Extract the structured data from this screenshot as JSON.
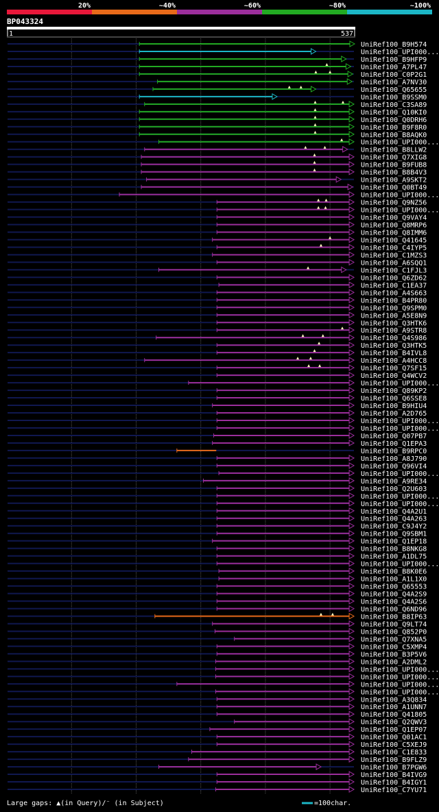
{
  "legend": {
    "identity_bins": [
      {
        "label": "20%",
        "color": "#e8183a"
      },
      {
        "label": "~40%",
        "color": "#e86a1a"
      },
      {
        "label": "~60%",
        "color": "#9b2e9b"
      },
      {
        "label": "~80%",
        "color": "#22aa22"
      },
      {
        "label": "~100%",
        "color": "#1cb6c6"
      }
    ]
  },
  "chart_data": {
    "type": "alignment-overview",
    "title": "BP043324",
    "query_range": {
      "start_label": "1",
      "end_label": "537",
      "length": 537
    },
    "colors": {
      "query_line": "#101850",
      "grid": "#555555",
      "gap": "#ffffc0",
      "red": "#e8183a",
      "orange": "#e86a1a",
      "purple": "#9b2e9b",
      "green": "#22aa22",
      "cyan": "#1cb6c6"
    },
    "footer": {
      "gaps_text": "Large gaps: ▲(in Query)/⁻ (in Subject)",
      "scale_text": "=100char."
    },
    "hits": [
      {
        "name": "UniRef100_B9H574",
        "start": 205,
        "end": 537,
        "color": "green",
        "tip": "open",
        "gaps": []
      },
      {
        "name": "UniRef100_UPI000...",
        "start": 205,
        "end": 477,
        "color": "cyan",
        "tip": "open",
        "gaps": []
      },
      {
        "name": "UniRef100_B9HFP9",
        "start": 205,
        "end": 524,
        "color": "green",
        "tip": "open",
        "gaps": []
      },
      {
        "name": "UniRef100_A7PL47",
        "start": 205,
        "end": 531,
        "color": "green",
        "tip": "open",
        "gaps": [
          495
        ]
      },
      {
        "name": "UniRef100_C0P2G1",
        "start": 205,
        "end": 534,
        "color": "green",
        "tip": "open",
        "gaps": [
          478,
          500
        ]
      },
      {
        "name": "UniRef100_A7NV30",
        "start": 233,
        "end": 533,
        "color": "green",
        "tip": "open",
        "gaps": []
      },
      {
        "name": "UniRef100_Q65655",
        "start": 226,
        "end": 477,
        "color": "green",
        "tip": "open",
        "gaps": [
          437,
          455
        ]
      },
      {
        "name": "UniRef100_B9SSM0",
        "start": 205,
        "end": 417,
        "color": "cyan",
        "tip": "open",
        "gaps": []
      },
      {
        "name": "UniRef100_C3SA89",
        "start": 213,
        "end": 536,
        "color": "green",
        "tip": "open",
        "gaps": [
          477,
          520
        ]
      },
      {
        "name": "UniRef100_Q10KI0",
        "start": 205,
        "end": 536,
        "color": "green",
        "tip": "open",
        "gaps": [
          477
        ]
      },
      {
        "name": "UniRef100_Q0DRH6",
        "start": 205,
        "end": 536,
        "color": "green",
        "tip": "open",
        "gaps": [
          477
        ]
      },
      {
        "name": "UniRef100_B9F8R0",
        "start": 205,
        "end": 536,
        "color": "green",
        "tip": "open",
        "gaps": [
          477
        ]
      },
      {
        "name": "UniRef100_B8AQK0",
        "start": 205,
        "end": 536,
        "color": "green",
        "tip": "open",
        "gaps": [
          477
        ]
      },
      {
        "name": "UniRef100_UPI000...",
        "start": 235,
        "end": 536,
        "color": "green",
        "tip": "open",
        "gaps": [
          518
        ]
      },
      {
        "name": "UniRef100_B8LLW2",
        "start": 213,
        "end": 526,
        "color": "purple",
        "tip": "open",
        "gaps": [
          462,
          492
        ]
      },
      {
        "name": "UniRef100_Q7XIG8",
        "start": 208,
        "end": 536,
        "color": "purple",
        "tip": "open",
        "gaps": [
          476
        ]
      },
      {
        "name": "UniRef100_B9FUB8",
        "start": 208,
        "end": 536,
        "color": "purple",
        "tip": "open",
        "gaps": [
          476
        ]
      },
      {
        "name": "UniRef100_B8B4V3",
        "start": 208,
        "end": 536,
        "color": "purple",
        "tip": "open",
        "gaps": [
          476
        ]
      },
      {
        "name": "UniRef100_A9SKT2",
        "start": 216,
        "end": 516,
        "color": "purple",
        "tip": "open",
        "gaps": []
      },
      {
        "name": "UniRef100_Q0BT49",
        "start": 208,
        "end": 534,
        "color": "purple",
        "tip": "open",
        "gaps": []
      },
      {
        "name": "UniRef100_UPI000...",
        "start": 174,
        "end": 536,
        "color": "purple",
        "tip": "open",
        "gaps": []
      },
      {
        "name": "UniRef100_Q9NZ56",
        "start": 325,
        "end": 536,
        "color": "purple",
        "tip": "open",
        "gaps": [
          482,
          494
        ]
      },
      {
        "name": "UniRef100_UPI000...",
        "start": 325,
        "end": 536,
        "color": "purple",
        "tip": "open",
        "gaps": [
          482,
          493
        ]
      },
      {
        "name": "UniRef100_Q9VAY4",
        "start": 325,
        "end": 536,
        "color": "purple",
        "tip": "open",
        "gaps": []
      },
      {
        "name": "UniRef100_Q8MRP6",
        "start": 325,
        "end": 536,
        "color": "purple",
        "tip": "open",
        "gaps": []
      },
      {
        "name": "UniRef100_Q8IMM6",
        "start": 325,
        "end": 536,
        "color": "purple",
        "tip": "open",
        "gaps": []
      },
      {
        "name": "UniRef100_Q41645",
        "start": 318,
        "end": 536,
        "color": "purple",
        "tip": "open",
        "gaps": [
          500
        ]
      },
      {
        "name": "UniRef100_C4IYP5",
        "start": 325,
        "end": 536,
        "color": "purple",
        "tip": "open",
        "gaps": [
          486
        ]
      },
      {
        "name": "UniRef100_C1MZS3",
        "start": 318,
        "end": 536,
        "color": "purple",
        "tip": "open",
        "gaps": []
      },
      {
        "name": "UniRef100_A6SQQ1",
        "start": 325,
        "end": 536,
        "color": "purple",
        "tip": "open",
        "gaps": []
      },
      {
        "name": "UniRef100_C1FJL3",
        "start": 235,
        "end": 524,
        "color": "purple",
        "tip": "open",
        "gaps": [
          466
        ]
      },
      {
        "name": "UniRef100_Q6ZD62",
        "start": 325,
        "end": 536,
        "color": "purple",
        "tip": "open",
        "gaps": []
      },
      {
        "name": "UniRef100_C1EA37",
        "start": 328,
        "end": 536,
        "color": "purple",
        "tip": "open",
        "gaps": []
      },
      {
        "name": "UniRef100_A4S663",
        "start": 325,
        "end": 536,
        "color": "purple",
        "tip": "open",
        "gaps": []
      },
      {
        "name": "UniRef100_B4PR80",
        "start": 325,
        "end": 536,
        "color": "purple",
        "tip": "open",
        "gaps": []
      },
      {
        "name": "UniRef100_Q9SPM0",
        "start": 325,
        "end": 536,
        "color": "purple",
        "tip": "open",
        "gaps": []
      },
      {
        "name": "UniRef100_A5E8N9",
        "start": 325,
        "end": 536,
        "color": "purple",
        "tip": "open",
        "gaps": []
      },
      {
        "name": "UniRef100_Q3HTK6",
        "start": 325,
        "end": 536,
        "color": "purple",
        "tip": "open",
        "gaps": []
      },
      {
        "name": "UniRef100_A9STR8",
        "start": 325,
        "end": 536,
        "color": "purple",
        "tip": "open",
        "gaps": [
          519
        ]
      },
      {
        "name": "UniRef100_Q4S986",
        "start": 231,
        "end": 536,
        "color": "purple",
        "tip": "open",
        "gaps": [
          458,
          489
        ]
      },
      {
        "name": "UniRef100_Q3HTK5",
        "start": 325,
        "end": 536,
        "color": "purple",
        "tip": "open",
        "gaps": [
          483
        ]
      },
      {
        "name": "UniRef100_B4IVL8",
        "start": 325,
        "end": 536,
        "color": "purple",
        "tip": "open",
        "gaps": [
          476
        ]
      },
      {
        "name": "UniRef100_A4HCC8",
        "start": 213,
        "end": 536,
        "color": "purple",
        "tip": "open",
        "gaps": [
          450,
          470
        ]
      },
      {
        "name": "UniRef100_Q7SF15",
        "start": 325,
        "end": 536,
        "color": "purple",
        "tip": "open",
        "gaps": [
          467,
          484
        ]
      },
      {
        "name": "UniRef100_Q4WCV2",
        "start": 325,
        "end": 536,
        "color": "purple",
        "tip": "open",
        "gaps": []
      },
      {
        "name": "UniRef100_UPI000...",
        "start": 281,
        "end": 536,
        "color": "purple",
        "tip": "open",
        "gaps": []
      },
      {
        "name": "UniRef100_Q89KP2",
        "start": 325,
        "end": 536,
        "color": "purple",
        "tip": "open",
        "gaps": []
      },
      {
        "name": "UniRef100_Q6SSE8",
        "start": 325,
        "end": 536,
        "color": "purple",
        "tip": "open",
        "gaps": []
      },
      {
        "name": "UniRef100_B9HIU4",
        "start": 318,
        "end": 536,
        "color": "purple",
        "tip": "open",
        "gaps": []
      },
      {
        "name": "UniRef100_A2D765",
        "start": 325,
        "end": 536,
        "color": "purple",
        "tip": "open",
        "gaps": []
      },
      {
        "name": "UniRef100_UPI000...",
        "start": 325,
        "end": 536,
        "color": "purple",
        "tip": "open",
        "gaps": []
      },
      {
        "name": "UniRef100_UPI000...",
        "start": 325,
        "end": 536,
        "color": "purple",
        "tip": "open",
        "gaps": []
      },
      {
        "name": "UniRef100_Q07PB7",
        "start": 320,
        "end": 536,
        "color": "purple",
        "tip": "open",
        "gaps": []
      },
      {
        "name": "UniRef100_Q1EPA3",
        "start": 318,
        "end": 536,
        "color": "purple",
        "tip": "open",
        "gaps": []
      },
      {
        "name": "UniRef100_B9RPC0",
        "start": 263,
        "end": 325,
        "color": "orange",
        "tip": "none",
        "gaps": []
      },
      {
        "name": "UniRef100_A8J790",
        "start": 325,
        "end": 536,
        "color": "purple",
        "tip": "open",
        "gaps": []
      },
      {
        "name": "UniRef100_Q96VI4",
        "start": 325,
        "end": 536,
        "color": "purple",
        "tip": "open",
        "gaps": []
      },
      {
        "name": "UniRef100_UPI000...",
        "start": 328,
        "end": 536,
        "color": "purple",
        "tip": "open",
        "gaps": []
      },
      {
        "name": "UniRef100_A9RE34",
        "start": 304,
        "end": 536,
        "color": "purple",
        "tip": "open",
        "gaps": []
      },
      {
        "name": "UniRef100_Q2U603",
        "start": 325,
        "end": 536,
        "color": "purple",
        "tip": "open",
        "gaps": []
      },
      {
        "name": "UniRef100_UPI000...",
        "start": 325,
        "end": 536,
        "color": "purple",
        "tip": "open",
        "gaps": []
      },
      {
        "name": "UniRef100_UPI000...",
        "start": 325,
        "end": 536,
        "color": "purple",
        "tip": "open",
        "gaps": []
      },
      {
        "name": "UniRef100_Q4A2U1",
        "start": 325,
        "end": 536,
        "color": "purple",
        "tip": "open",
        "gaps": []
      },
      {
        "name": "UniRef100_Q4A263",
        "start": 325,
        "end": 536,
        "color": "purple",
        "tip": "open",
        "gaps": []
      },
      {
        "name": "UniRef100_C9J4Y2",
        "start": 325,
        "end": 536,
        "color": "purple",
        "tip": "open",
        "gaps": []
      },
      {
        "name": "UniRef100_Q9SBM1",
        "start": 325,
        "end": 536,
        "color": "purple",
        "tip": "open",
        "gaps": []
      },
      {
        "name": "UniRef100_Q1EP18",
        "start": 318,
        "end": 536,
        "color": "purple",
        "tip": "open",
        "gaps": []
      },
      {
        "name": "UniRef100_B8NKG8",
        "start": 325,
        "end": 536,
        "color": "purple",
        "tip": "open",
        "gaps": []
      },
      {
        "name": "UniRef100_A1DL75",
        "start": 325,
        "end": 536,
        "color": "purple",
        "tip": "open",
        "gaps": []
      },
      {
        "name": "UniRef100_UPI000...",
        "start": 325,
        "end": 536,
        "color": "purple",
        "tip": "open",
        "gaps": []
      },
      {
        "name": "UniRef100_B8K0E6",
        "start": 328,
        "end": 536,
        "color": "purple",
        "tip": "open",
        "gaps": []
      },
      {
        "name": "UniRef100_A1L1X0",
        "start": 328,
        "end": 536,
        "color": "purple",
        "tip": "open",
        "gaps": []
      },
      {
        "name": "UniRef100_Q65553",
        "start": 325,
        "end": 536,
        "color": "purple",
        "tip": "open",
        "gaps": []
      },
      {
        "name": "UniRef100_Q4A2S9",
        "start": 325,
        "end": 536,
        "color": "purple",
        "tip": "open",
        "gaps": []
      },
      {
        "name": "UniRef100_Q4A2S6",
        "start": 325,
        "end": 536,
        "color": "purple",
        "tip": "open",
        "gaps": []
      },
      {
        "name": "UniRef100_Q6ND96",
        "start": 325,
        "end": 536,
        "color": "purple",
        "tip": "open",
        "gaps": []
      },
      {
        "name": "UniRef100_B8IP63",
        "start": 229,
        "end": 536,
        "color": "orange",
        "tip": "open",
        "gaps": [
          486,
          504
        ]
      },
      {
        "name": "UniRef100_Q9LT74",
        "start": 318,
        "end": 536,
        "color": "purple",
        "tip": "open",
        "gaps": []
      },
      {
        "name": "UniRef100_Q852P0",
        "start": 322,
        "end": 536,
        "color": "purple",
        "tip": "open",
        "gaps": []
      },
      {
        "name": "UniRef100_Q7XNA5",
        "start": 352,
        "end": 536,
        "color": "purple",
        "tip": "open",
        "gaps": []
      },
      {
        "name": "UniRef100_C5XMP4",
        "start": 325,
        "end": 536,
        "color": "purple",
        "tip": "open",
        "gaps": []
      },
      {
        "name": "UniRef100_B3P5V6",
        "start": 325,
        "end": 536,
        "color": "purple",
        "tip": "open",
        "gaps": []
      },
      {
        "name": "UniRef100_A2DML2",
        "start": 323,
        "end": 536,
        "color": "purple",
        "tip": "open",
        "gaps": []
      },
      {
        "name": "UniRef100_UPI000...",
        "start": 323,
        "end": 536,
        "color": "purple",
        "tip": "open",
        "gaps": []
      },
      {
        "name": "UniRef100_UPI000...",
        "start": 323,
        "end": 536,
        "color": "purple",
        "tip": "open",
        "gaps": []
      },
      {
        "name": "UniRef100_UPI000...",
        "start": 263,
        "end": 536,
        "color": "purple",
        "tip": "open",
        "gaps": []
      },
      {
        "name": "UniRef100_UPI000...",
        "start": 323,
        "end": 536,
        "color": "purple",
        "tip": "open",
        "gaps": []
      },
      {
        "name": "UniRef100_A3Q834",
        "start": 325,
        "end": 536,
        "color": "purple",
        "tip": "open",
        "gaps": []
      },
      {
        "name": "UniRef100_A1UNN7",
        "start": 325,
        "end": 536,
        "color": "purple",
        "tip": "open",
        "gaps": []
      },
      {
        "name": "UniRef100_Q41805",
        "start": 325,
        "end": 536,
        "color": "purple",
        "tip": "open",
        "gaps": []
      },
      {
        "name": "UniRef100_Q2QWV3",
        "start": 352,
        "end": 536,
        "color": "purple",
        "tip": "open",
        "gaps": []
      },
      {
        "name": "UniRef100_Q1EP07",
        "start": 314,
        "end": 536,
        "color": "purple",
        "tip": "open",
        "gaps": []
      },
      {
        "name": "UniRef100_Q01AC1",
        "start": 325,
        "end": 536,
        "color": "purple",
        "tip": "open",
        "gaps": []
      },
      {
        "name": "UniRef100_C5XEJ9",
        "start": 325,
        "end": 536,
        "color": "purple",
        "tip": "open",
        "gaps": []
      },
      {
        "name": "UniRef100_C1E833",
        "start": 286,
        "end": 536,
        "color": "purple",
        "tip": "open",
        "gaps": []
      },
      {
        "name": "UniRef100_B9FLZ9",
        "start": 281,
        "end": 536,
        "color": "purple",
        "tip": "open",
        "gaps": []
      },
      {
        "name": "UniRef100_B7PGW6",
        "start": 235,
        "end": 485,
        "color": "purple",
        "tip": "open",
        "gaps": []
      },
      {
        "name": "UniRef100_B4IVG9",
        "start": 325,
        "end": 536,
        "color": "purple",
        "tip": "open",
        "gaps": []
      },
      {
        "name": "UniRef100_B4IGY1",
        "start": 325,
        "end": 536,
        "color": "purple",
        "tip": "open",
        "gaps": []
      },
      {
        "name": "UniRef100_C7YU71",
        "start": 323,
        "end": 536,
        "color": "purple",
        "tip": "open",
        "gaps": []
      }
    ]
  }
}
